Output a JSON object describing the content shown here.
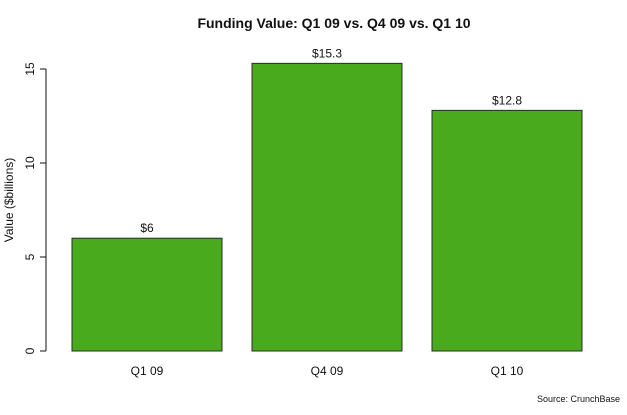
{
  "chart_data": {
    "type": "bar",
    "title": "Funding Value: Q1 09 vs. Q4 09 vs. Q1 10",
    "xlabel": "",
    "ylabel": "Value ($billions)",
    "categories": [
      "Q1 09",
      "Q4 09",
      "Q1 10"
    ],
    "values": [
      6,
      15.3,
      12.8
    ],
    "data_labels": [
      "$6",
      "$15.3",
      "$12.8"
    ],
    "ylim": [
      0,
      15
    ],
    "yticks": [
      0,
      5,
      10,
      15
    ],
    "bar_color": "#4aaa1e",
    "grid": false,
    "legend": "none",
    "source": "Source: CrunchBase"
  }
}
